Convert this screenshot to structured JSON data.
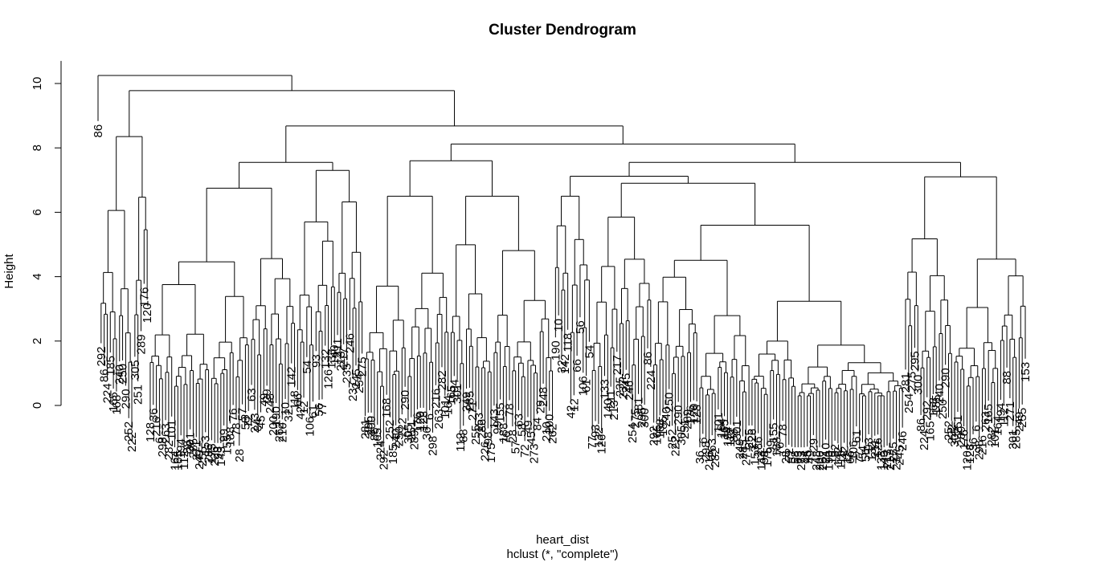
{
  "chart_data": {
    "type": "dendrogram",
    "title": "Cluster Dendrogram",
    "xlabel": "heart_dist",
    "sublabel": "hclust (*, \"complete\")",
    "ylabel": "Height",
    "ylim": [
      0,
      10.5
    ],
    "yticks": [
      0,
      2,
      4,
      6,
      8,
      10
    ],
    "ytick_labels": [
      "0",
      "2",
      "4",
      "6",
      "8",
      "10"
    ],
    "leaf_count": 303,
    "top_merges": [
      {
        "height": 10.25,
        "description": "root: leaf 86 vs all others"
      },
      {
        "height": 9.78,
        "description": "left block vs remaining"
      },
      {
        "height": 8.68,
        "description": "middle-left vs right"
      },
      {
        "height": 8.35,
        "description": "leftmost subcluster"
      },
      {
        "height": 8.12,
        "description": "center vs far-right"
      },
      {
        "height": 7.6,
        "description": "center subcluster"
      },
      {
        "height": 7.55,
        "description": "left-center subcluster"
      },
      {
        "height": 7.12,
        "description": "center-right subcluster"
      },
      {
        "height": 7.1,
        "description": "far-right subcluster"
      },
      {
        "height": 6.9,
        "description": "center-right inner"
      },
      {
        "height": 6.75,
        "description": "left-center inner"
      }
    ],
    "visible_leaf_labels": [
      "86",
      "224",
      "292",
      "165",
      "168",
      "185",
      "240",
      "250",
      "252",
      "222",
      "290",
      "305",
      "251",
      "289",
      "176",
      "120",
      "128",
      "36",
      "6",
      "298",
      "216",
      "263",
      "282",
      "101",
      "164",
      "165",
      "194",
      "112",
      "88",
      "301",
      "285",
      "271",
      "249",
      "255",
      "153",
      "286",
      "226",
      "98",
      "175",
      "143",
      "99",
      "155",
      "188",
      "76",
      "78",
      "28",
      "57",
      "58",
      "72",
      "63",
      "273",
      "84",
      "45",
      "49",
      "29",
      "248",
      "200",
      "262",
      "210",
      "190",
      "10",
      "32",
      "142",
      "118",
      "42",
      "12",
      "66",
      "106",
      "61",
      "54",
      "56",
      "77",
      "93",
      "132",
      "126",
      "133",
      "140",
      "211",
      "213",
      "217",
      "235",
      "237",
      "245",
      "246",
      "254",
      "275",
      "281",
      "295",
      "300"
    ]
  }
}
